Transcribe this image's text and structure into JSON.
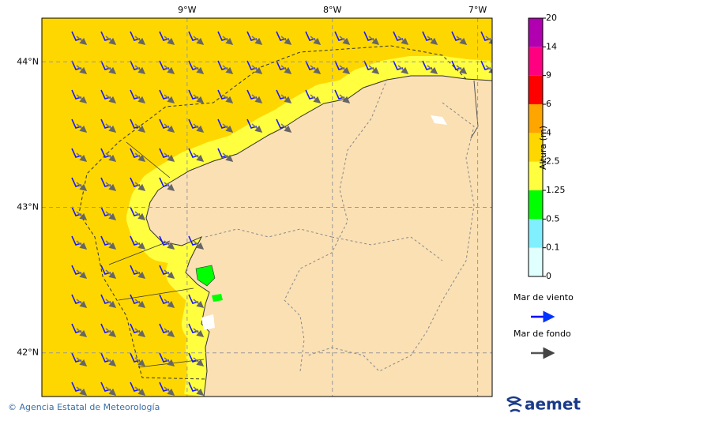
{
  "map": {
    "lon_range": [
      -10,
      -6.9
    ],
    "lat_range": [
      41.7,
      44.3
    ],
    "lon_ticks": [
      {
        "value": -9,
        "label": "9°W"
      },
      {
        "value": -8,
        "label": "8°W"
      },
      {
        "value": -7,
        "label": "7°W"
      }
    ],
    "lat_ticks": [
      {
        "value": 44,
        "label": "44°N"
      },
      {
        "value": 43,
        "label": "43°N"
      },
      {
        "value": 42,
        "label": "42°N"
      }
    ]
  },
  "colorbar": {
    "label": "Altura (m)",
    "levels": [
      0,
      0.1,
      0.5,
      1.25,
      2.5,
      4,
      6,
      9,
      14,
      20
    ],
    "colors": [
      "#e0ffff",
      "#80f0ff",
      "#00ff00",
      "#ffff40",
      "#ffd700",
      "#ffa500",
      "#ff0000",
      "#ff0080",
      "#b000b0"
    ]
  },
  "legend": [
    {
      "label": "Mar de viento",
      "color": "#0000ff"
    },
    {
      "label": "Mar de fondo",
      "color": "#555555"
    }
  ],
  "footer": {
    "credit": "© Agencia Estatal de Meteorología",
    "logo": "aemet"
  }
}
